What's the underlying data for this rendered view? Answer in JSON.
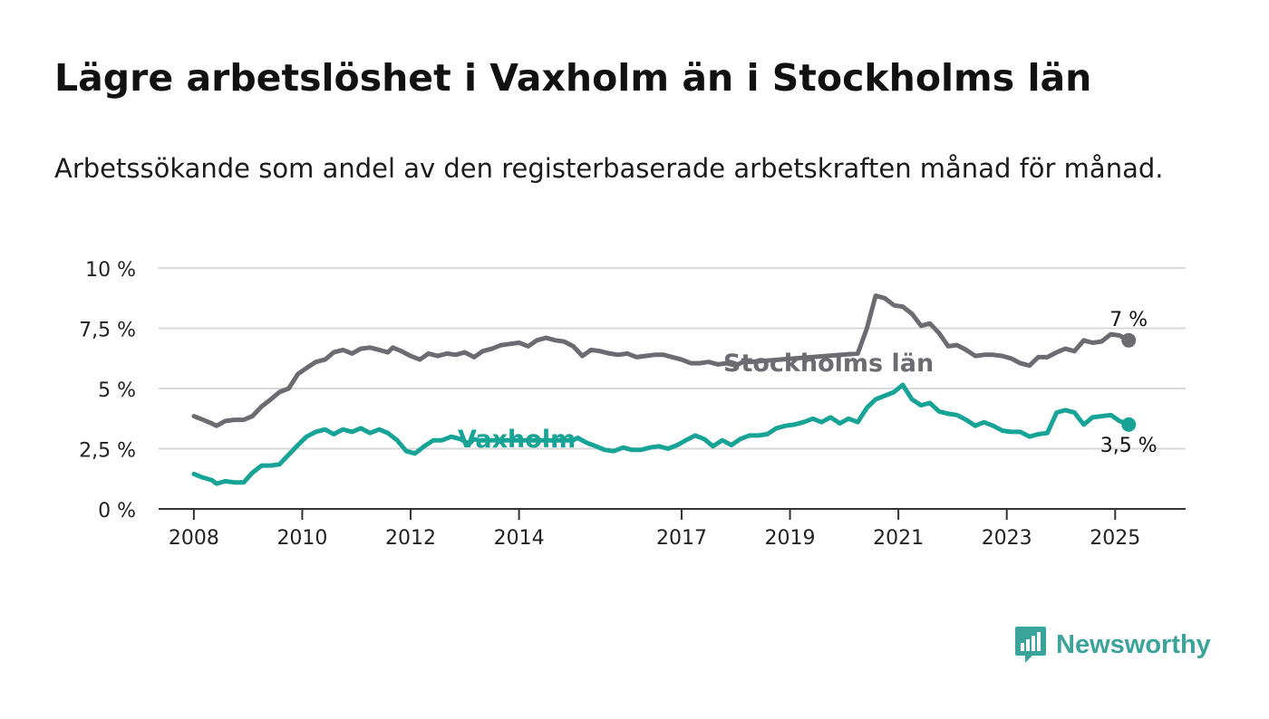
{
  "title": "Lägre arbetslöshet i Vaxholm än i Stockholms län",
  "subtitle": "Arbetssökande som andel av den registerbaserade arbetskraften månad för månad.",
  "logo": {
    "name": "Newsworthy",
    "icon": "newsworthy-chart-bubble-icon"
  },
  "colors": {
    "stockholm": "#6d6b72",
    "vaxholm": "#17a497",
    "grid": "#d9d9d9",
    "axis": "#333333"
  },
  "chart_data": {
    "type": "line",
    "ylim": [
      0,
      10
    ],
    "grid": true,
    "y_ticks": [
      {
        "value": 0,
        "label": "0 %"
      },
      {
        "value": 2.5,
        "label": "2,5 %"
      },
      {
        "value": 5,
        "label": "5 %"
      },
      {
        "value": 7.5,
        "label": "7,5 %"
      },
      {
        "value": 10,
        "label": "10 %"
      }
    ],
    "x_ticks": [
      {
        "value": 2008,
        "label": "2008"
      },
      {
        "value": 2010,
        "label": "2010"
      },
      {
        "value": 2012,
        "label": "2012"
      },
      {
        "value": 2014,
        "label": "2014"
      },
      {
        "value": 2017,
        "label": "2017"
      },
      {
        "value": 2019,
        "label": "2019"
      },
      {
        "value": 2021,
        "label": "2021"
      },
      {
        "value": 2023,
        "label": "2023"
      },
      {
        "value": 2025,
        "label": "2025"
      }
    ],
    "series": [
      {
        "name": "Stockholms län",
        "color": "#6d6b72",
        "end_label": "7 %",
        "points": [
          [
            2008.0,
            3.85
          ],
          [
            2008.17,
            3.7
          ],
          [
            2008.33,
            3.55
          ],
          [
            2008.42,
            3.45
          ],
          [
            2008.58,
            3.65
          ],
          [
            2008.75,
            3.7
          ],
          [
            2008.92,
            3.7
          ],
          [
            2009.08,
            3.85
          ],
          [
            2009.25,
            4.25
          ],
          [
            2009.42,
            4.55
          ],
          [
            2009.58,
            4.85
          ],
          [
            2009.75,
            5.0
          ],
          [
            2009.92,
            5.6
          ],
          [
            2010.08,
            5.85
          ],
          [
            2010.25,
            6.1
          ],
          [
            2010.42,
            6.2
          ],
          [
            2010.58,
            6.5
          ],
          [
            2010.75,
            6.6
          ],
          [
            2010.92,
            6.45
          ],
          [
            2011.08,
            6.65
          ],
          [
            2011.25,
            6.7
          ],
          [
            2011.42,
            6.6
          ],
          [
            2011.58,
            6.5
          ],
          [
            2011.67,
            6.7
          ],
          [
            2011.83,
            6.55
          ],
          [
            2012.0,
            6.35
          ],
          [
            2012.17,
            6.2
          ],
          [
            2012.33,
            6.45
          ],
          [
            2012.5,
            6.35
          ],
          [
            2012.67,
            6.45
          ],
          [
            2012.83,
            6.4
          ],
          [
            2013.0,
            6.5
          ],
          [
            2013.17,
            6.3
          ],
          [
            2013.33,
            6.55
          ],
          [
            2013.5,
            6.65
          ],
          [
            2013.67,
            6.8
          ],
          [
            2013.83,
            6.85
          ],
          [
            2014.0,
            6.9
          ],
          [
            2014.17,
            6.75
          ],
          [
            2014.33,
            7.0
          ],
          [
            2014.5,
            7.1
          ],
          [
            2014.67,
            7.0
          ],
          [
            2014.83,
            6.95
          ],
          [
            2015.0,
            6.75
          ],
          [
            2015.17,
            6.35
          ],
          [
            2015.33,
            6.6
          ],
          [
            2015.5,
            6.55
          ],
          [
            2015.67,
            6.45
          ],
          [
            2015.83,
            6.4
          ],
          [
            2016.0,
            6.45
          ],
          [
            2016.17,
            6.3
          ],
          [
            2016.33,
            6.35
          ],
          [
            2016.5,
            6.4
          ],
          [
            2016.67,
            6.4
          ],
          [
            2016.83,
            6.3
          ],
          [
            2017.0,
            6.2
          ],
          [
            2017.17,
            6.05
          ],
          [
            2017.33,
            6.05
          ],
          [
            2017.5,
            6.1
          ],
          [
            2017.67,
            6.0
          ],
          [
            2017.83,
            6.05
          ],
          [
            2018.0,
            5.95
          ],
          [
            2018.17,
            6.15
          ],
          [
            2018.25,
            6.1
          ],
          [
            2020.25,
            6.45
          ],
          [
            2020.42,
            7.5
          ],
          [
            2020.58,
            8.85
          ],
          [
            2020.75,
            8.75
          ],
          [
            2020.92,
            8.45
          ],
          [
            2021.08,
            8.4
          ],
          [
            2021.25,
            8.1
          ],
          [
            2021.42,
            7.6
          ],
          [
            2021.58,
            7.7
          ],
          [
            2021.75,
            7.3
          ],
          [
            2021.92,
            6.75
          ],
          [
            2022.08,
            6.8
          ],
          [
            2022.25,
            6.6
          ],
          [
            2022.42,
            6.35
          ],
          [
            2022.58,
            6.4
          ],
          [
            2022.75,
            6.4
          ],
          [
            2022.92,
            6.35
          ],
          [
            2023.08,
            6.25
          ],
          [
            2023.25,
            6.05
          ],
          [
            2023.42,
            5.95
          ],
          [
            2023.58,
            6.3
          ],
          [
            2023.75,
            6.3
          ],
          [
            2023.92,
            6.5
          ],
          [
            2024.08,
            6.65
          ],
          [
            2024.25,
            6.55
          ],
          [
            2024.42,
            7.0
          ],
          [
            2024.58,
            6.9
          ],
          [
            2024.75,
            6.95
          ],
          [
            2024.92,
            7.25
          ],
          [
            2025.08,
            7.2
          ],
          [
            2025.25,
            7.0
          ]
        ]
      },
      {
        "name": "Vaxholm",
        "color": "#17a497",
        "end_label": "3,5 %",
        "points": [
          [
            2008.0,
            1.45
          ],
          [
            2008.17,
            1.3
          ],
          [
            2008.33,
            1.2
          ],
          [
            2008.42,
            1.05
          ],
          [
            2008.58,
            1.15
          ],
          [
            2008.75,
            1.1
          ],
          [
            2008.92,
            1.1
          ],
          [
            2009.08,
            1.5
          ],
          [
            2009.25,
            1.8
          ],
          [
            2009.42,
            1.8
          ],
          [
            2009.58,
            1.85
          ],
          [
            2009.75,
            2.25
          ],
          [
            2009.92,
            2.65
          ],
          [
            2010.08,
            3.0
          ],
          [
            2010.25,
            3.2
          ],
          [
            2010.42,
            3.3
          ],
          [
            2010.58,
            3.1
          ],
          [
            2010.75,
            3.3
          ],
          [
            2010.92,
            3.2
          ],
          [
            2011.08,
            3.35
          ],
          [
            2011.25,
            3.15
          ],
          [
            2011.42,
            3.3
          ],
          [
            2011.58,
            3.15
          ],
          [
            2011.75,
            2.85
          ],
          [
            2011.92,
            2.4
          ],
          [
            2012.08,
            2.3
          ],
          [
            2012.25,
            2.6
          ],
          [
            2012.42,
            2.85
          ],
          [
            2012.58,
            2.85
          ],
          [
            2012.75,
            3.0
          ],
          [
            2012.92,
            2.9
          ],
          [
            2013.08,
            2.7
          ],
          [
            2013.17,
            2.9
          ],
          [
            2013.25,
            2.85
          ],
          [
            2015.0,
            2.85
          ],
          [
            2015.08,
            2.95
          ],
          [
            2015.25,
            2.75
          ],
          [
            2015.42,
            2.6
          ],
          [
            2015.58,
            2.45
          ],
          [
            2015.75,
            2.4
          ],
          [
            2015.92,
            2.55
          ],
          [
            2016.08,
            2.45
          ],
          [
            2016.25,
            2.45
          ],
          [
            2016.42,
            2.55
          ],
          [
            2016.58,
            2.6
          ],
          [
            2016.75,
            2.5
          ],
          [
            2016.92,
            2.65
          ],
          [
            2017.08,
            2.85
          ],
          [
            2017.25,
            3.05
          ],
          [
            2017.42,
            2.9
          ],
          [
            2017.58,
            2.6
          ],
          [
            2017.75,
            2.85
          ],
          [
            2017.92,
            2.65
          ],
          [
            2018.08,
            2.9
          ],
          [
            2018.25,
            3.05
          ],
          [
            2018.42,
            3.05
          ],
          [
            2018.58,
            3.1
          ],
          [
            2018.75,
            3.35
          ],
          [
            2018.92,
            3.45
          ],
          [
            2019.08,
            3.5
          ],
          [
            2019.25,
            3.6
          ],
          [
            2019.42,
            3.75
          ],
          [
            2019.58,
            3.6
          ],
          [
            2019.75,
            3.8
          ],
          [
            2019.92,
            3.55
          ],
          [
            2020.08,
            3.75
          ],
          [
            2020.25,
            3.6
          ],
          [
            2020.42,
            4.2
          ],
          [
            2020.58,
            4.55
          ],
          [
            2020.75,
            4.7
          ],
          [
            2020.92,
            4.85
          ],
          [
            2021.08,
            5.15
          ],
          [
            2021.25,
            4.55
          ],
          [
            2021.42,
            4.3
          ],
          [
            2021.58,
            4.4
          ],
          [
            2021.75,
            4.05
          ],
          [
            2021.92,
            3.95
          ],
          [
            2022.08,
            3.9
          ],
          [
            2022.25,
            3.7
          ],
          [
            2022.42,
            3.45
          ],
          [
            2022.58,
            3.6
          ],
          [
            2022.75,
            3.45
          ],
          [
            2022.92,
            3.25
          ],
          [
            2023.08,
            3.2
          ],
          [
            2023.25,
            3.2
          ],
          [
            2023.42,
            3.0
          ],
          [
            2023.58,
            3.1
          ],
          [
            2023.75,
            3.15
          ],
          [
            2023.92,
            4.0
          ],
          [
            2024.08,
            4.1
          ],
          [
            2024.25,
            4.0
          ],
          [
            2024.42,
            3.5
          ],
          [
            2024.58,
            3.8
          ],
          [
            2024.75,
            3.85
          ],
          [
            2024.92,
            3.9
          ],
          [
            2025.08,
            3.65
          ],
          [
            2025.25,
            3.5
          ]
        ]
      }
    ]
  }
}
